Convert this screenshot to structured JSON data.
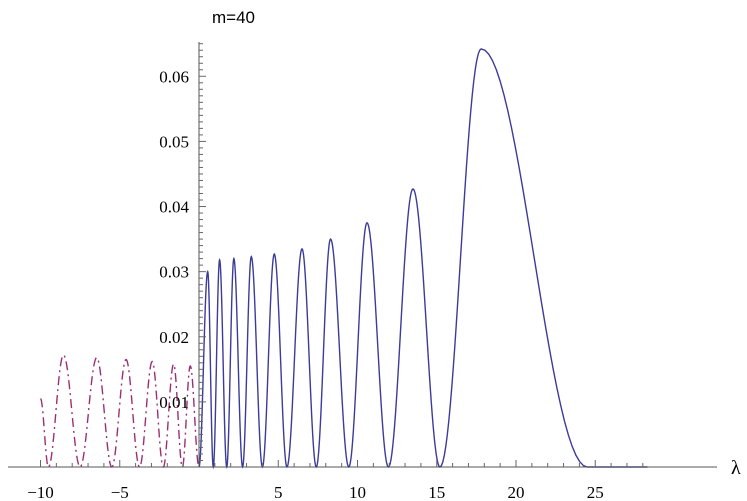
{
  "chart_data": {
    "type": "line",
    "title": "m=40",
    "xlabel": "λ",
    "ylabel": "",
    "xlim": [
      -10.6,
      28.5
    ],
    "ylim": [
      0,
      0.066
    ],
    "grid": false,
    "x_ticks": [
      -10,
      -5,
      5,
      10,
      15,
      20,
      25
    ],
    "x_tick_labels": [
      "−10",
      "−5",
      "5",
      "10",
      "15",
      "20",
      "25"
    ],
    "y_ticks": [
      0.01,
      0.02,
      0.03,
      0.04,
      0.05,
      0.06
    ],
    "y_tick_labels": [
      "0.01",
      "0.02",
      "0.03",
      "0.04",
      "0.05",
      "0.06"
    ],
    "series": [
      {
        "style": "solid",
        "color": "#3b3b9a",
        "peak_x": [
          0.55,
          1.3,
          2.2,
          3.3,
          4.75,
          6.5,
          8.3,
          10.6,
          13.5,
          17.8
        ],
        "peak_y": [
          0.03,
          0.0318,
          0.032,
          0.0323,
          0.0327,
          0.0335,
          0.035,
          0.0375,
          0.0427,
          0.0642
        ],
        "zero_x": [
          0.0,
          0.9,
          1.75,
          2.75,
          4.0,
          5.55,
          7.4,
          9.45,
          11.95,
          15.2,
          24.5
        ],
        "x_range": [
          0.0,
          28.3
        ]
      },
      {
        "style": "dash-dot",
        "color": "#9c2f73",
        "peak_x": [
          -10.0,
          -8.55,
          -6.45,
          -4.6,
          -2.95,
          -1.6,
          -0.55
        ],
        "peak_y": [
          0.0105,
          0.0172,
          0.0168,
          0.0165,
          0.0162,
          0.0158,
          0.0155
        ],
        "zero_x": [
          -9.5,
          -7.5,
          -5.5,
          -3.75,
          -2.25,
          -1.05,
          0.0
        ],
        "x_range": [
          -10.0,
          0.0
        ]
      }
    ]
  }
}
